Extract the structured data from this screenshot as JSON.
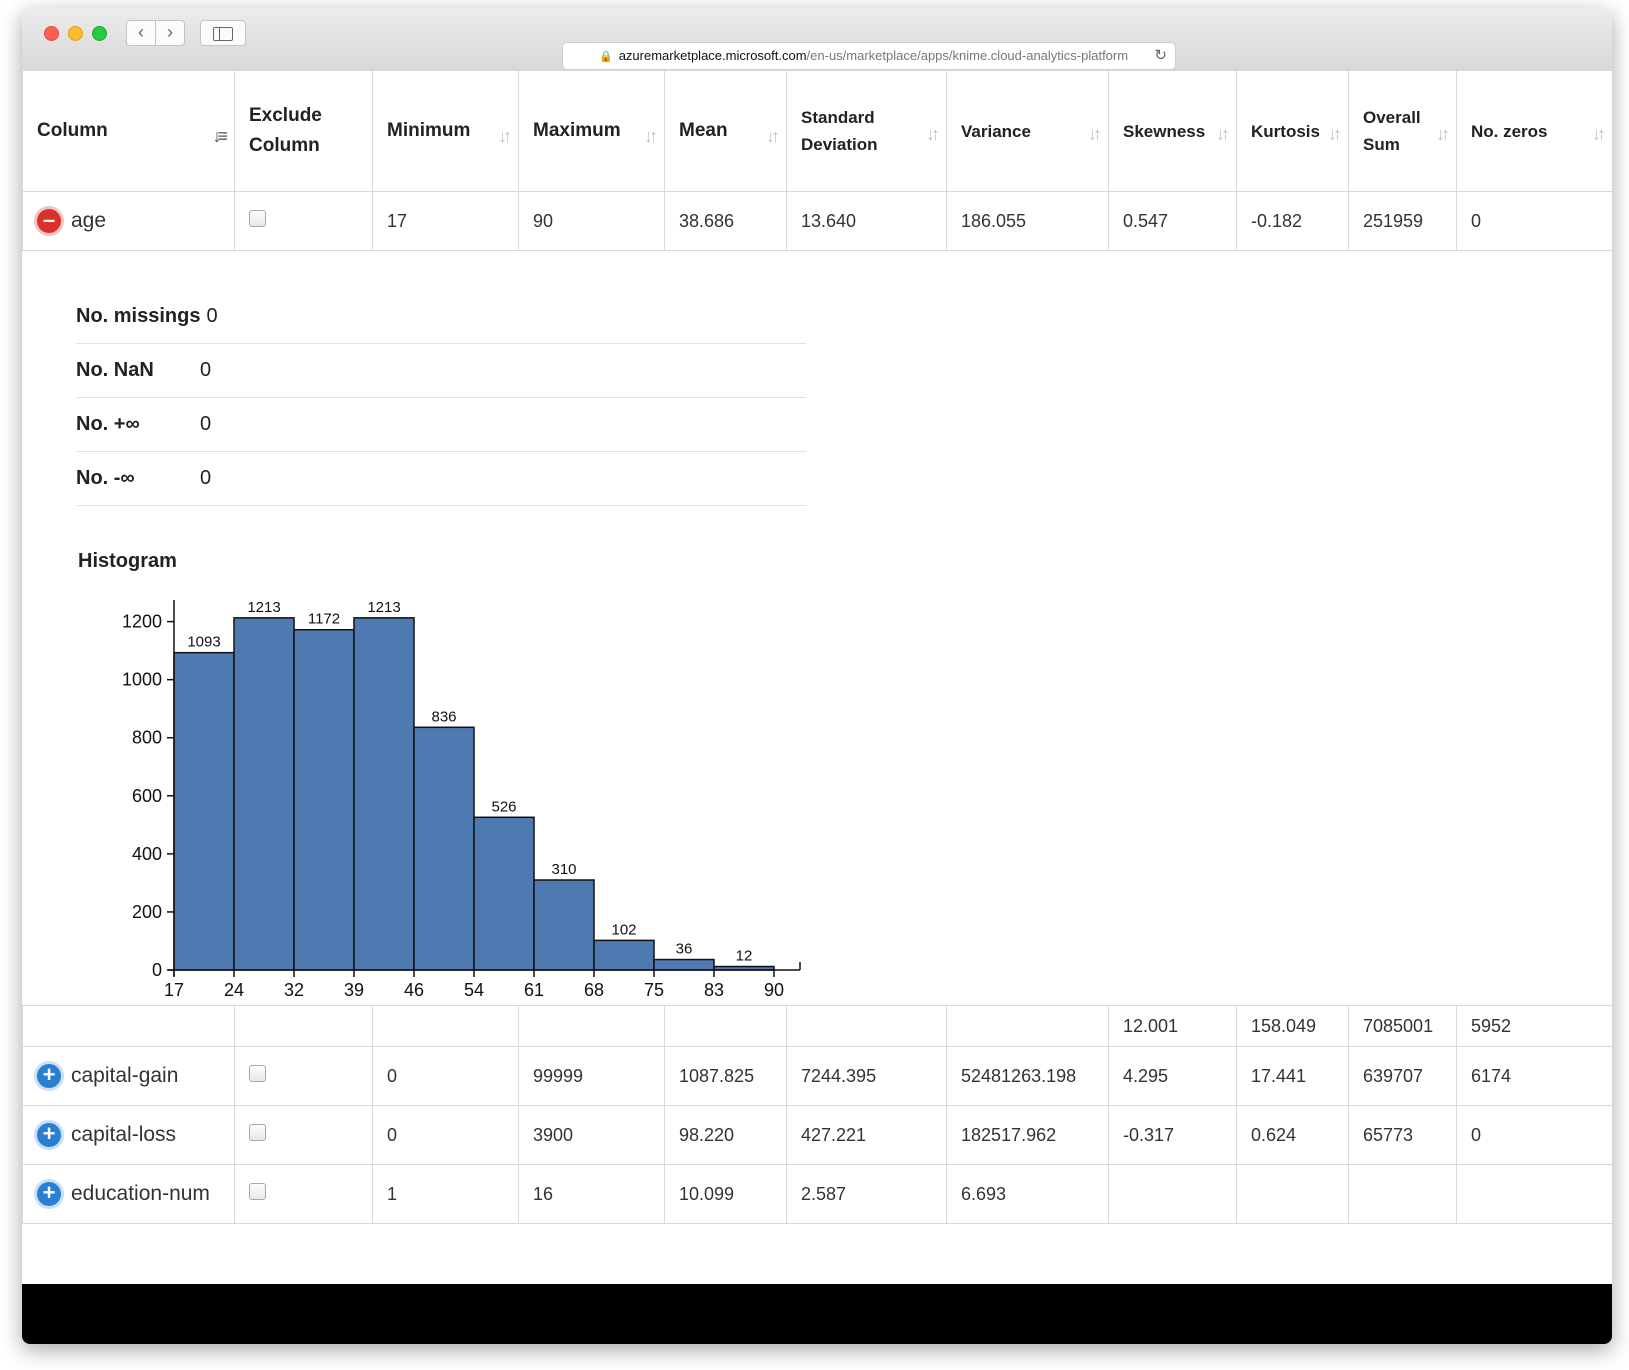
{
  "browser": {
    "url_host": "azuremarketplace.microsoft.com",
    "url_path": "/en-us/marketplace/apps/knime.cloud-analytics-platform",
    "back_icon": "‹",
    "forward_icon": "›"
  },
  "table": {
    "headers": {
      "column": "Column",
      "exclude": "Exclude Column",
      "minimum": "Minimum",
      "maximum": "Maximum",
      "mean": "Mean",
      "std": "Standard Deviation",
      "variance": "Variance",
      "skewness": "Skewness",
      "kurtosis": "Kurtosis",
      "sum": "Overall Sum",
      "zeros": "No. zeros"
    },
    "expanded_row": {
      "name": "age",
      "minimum": "17",
      "maximum": "90",
      "mean": "38.686",
      "std": "13.640",
      "variance": "186.055",
      "skewness": "0.547",
      "kurtosis": "-0.182",
      "sum": "251959",
      "zeros": "0"
    },
    "partial_row": {
      "minimum": "",
      "maximum": "",
      "mean": "",
      "std": "",
      "variance": "",
      "skewness": "12.001",
      "kurtosis": "158.049",
      "sum": "7085001",
      "zeros": "5952"
    },
    "rows": [
      {
        "name": "capital-gain",
        "minimum": "0",
        "maximum": "99999",
        "mean": "1087.825",
        "std": "7244.395",
        "variance": "52481263.198",
        "skewness": "4.295",
        "kurtosis": "17.441",
        "sum": "639707",
        "zeros": "6174"
      },
      {
        "name": "capital-loss",
        "minimum": "0",
        "maximum": "3900",
        "mean": "98.220",
        "std": "427.221",
        "variance": "182517.962",
        "skewness": "-0.317",
        "kurtosis": "0.624",
        "sum": "65773",
        "zeros": "0"
      },
      {
        "name": "education-num",
        "minimum": "1",
        "maximum": "16",
        "mean": "10.099",
        "std": "2.587",
        "variance": "6.693",
        "skewness": "",
        "kurtosis": "",
        "sum": "",
        "zeros": ""
      }
    ]
  },
  "missings": {
    "missing_label": "No. missings",
    "missing_value": "0",
    "nan_label": "No. NaN",
    "nan_value": "0",
    "posinf_label": "No. +∞",
    "posinf_value": "0",
    "neginf_label": "No. -∞",
    "neginf_value": "0"
  },
  "histogram_title": "Histogram",
  "chart_data": {
    "type": "bar",
    "title": "Histogram",
    "bin_edges": [
      "17",
      "24",
      "32",
      "39",
      "46",
      "54",
      "61",
      "68",
      "75",
      "83",
      "90"
    ],
    "values": [
      1093,
      1213,
      1172,
      1213,
      836,
      526,
      310,
      102,
      36,
      12
    ],
    "value_labels": [
      "1093",
      "1213",
      "1172",
      "1213",
      "836",
      "526",
      "310",
      "102",
      "36",
      "12"
    ],
    "y_ticks": [
      "0",
      "200",
      "400",
      "600",
      "800",
      "1000",
      "1200"
    ],
    "ylim": [
      0,
      1240
    ],
    "grid": false,
    "bar_color": "#4e79b1"
  }
}
